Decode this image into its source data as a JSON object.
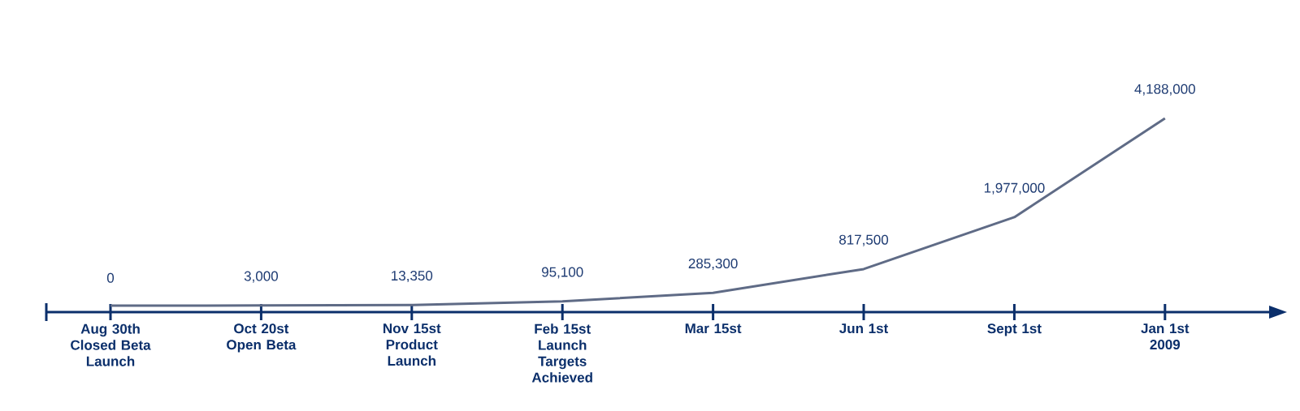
{
  "chart_data": {
    "type": "line",
    "color": "#5f6b86",
    "categories": [
      "Aug 30th Closed Beta Launch",
      "Oct 20st Open Beta",
      "Nov 15st Product Launch",
      "Feb 15st Launch Targets Achieved",
      "Mar 15st",
      "Jun 1st",
      "Sept 1st",
      "Jan 1st 2009"
    ],
    "values": [
      0,
      3000,
      13350,
      95100,
      285300,
      817500,
      1977000,
      4188000
    ],
    "value_labels": [
      "0",
      "3,000",
      "13,350",
      "95,100",
      "285,300",
      "817,500",
      "1,977,000",
      "4,188,000"
    ]
  }
}
